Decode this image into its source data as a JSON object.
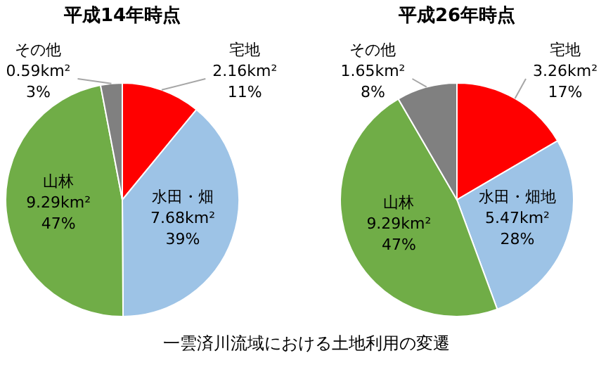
{
  "chart_data": [
    {
      "type": "pie",
      "title": "平成14年時点",
      "categories": [
        "宅地",
        "水田・畑",
        "山林",
        "その他"
      ],
      "values": [
        2.16,
        7.68,
        9.29,
        0.59
      ],
      "colors": [
        "#ff0000",
        "#9dc3e6",
        "#70ad47",
        "#808080"
      ],
      "value_labels": [
        "2.16km²\n11%",
        "7.68km²\n39%",
        "9.29km²\n47%",
        "0.59km²\n3%"
      ],
      "annotations": [
        "一雲済川流域における土地利用の変遷"
      ]
    },
    {
      "type": "pie",
      "title": "平成26年時点",
      "categories": [
        "宅地",
        "水田・畑地",
        "山林",
        "その他"
      ],
      "values": [
        3.26,
        5.47,
        9.29,
        1.65
      ],
      "colors": [
        "#ff0000",
        "#9dc3e6",
        "#70ad47",
        "#808080"
      ],
      "value_labels": [
        "3.26km²\n17%",
        "5.47km²\n28%",
        "9.29km²\n47%",
        "1.65km²\n8%"
      ]
    }
  ]
}
